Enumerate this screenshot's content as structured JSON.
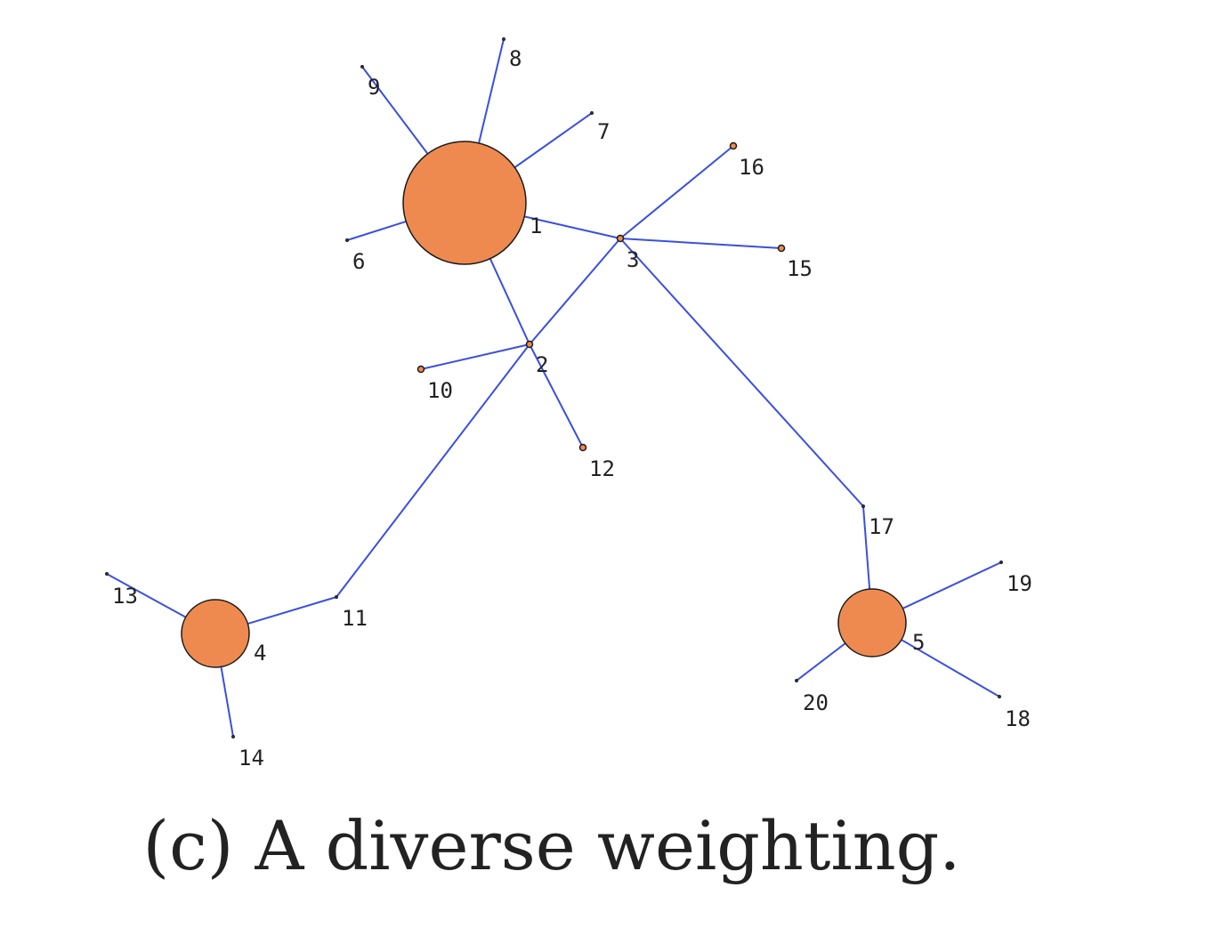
{
  "caption": "(c) A diverse weighting.",
  "colors": {
    "edge": "#3a4fe0",
    "node_fill": "#ee8a50",
    "node_stroke": "#1a1a1a",
    "label": "#222222"
  },
  "nodes": [
    {
      "id": "1",
      "label": "1",
      "size": "large"
    },
    {
      "id": "2",
      "label": "2",
      "size": "tiny"
    },
    {
      "id": "3",
      "label": "3",
      "size": "tiny"
    },
    {
      "id": "4",
      "label": "4",
      "size": "medium"
    },
    {
      "id": "5",
      "label": "5",
      "size": "medium"
    },
    {
      "id": "6",
      "label": "6",
      "size": "point"
    },
    {
      "id": "7",
      "label": "7",
      "size": "point"
    },
    {
      "id": "8",
      "label": "8",
      "size": "point"
    },
    {
      "id": "9",
      "label": "9",
      "size": "point"
    },
    {
      "id": "10",
      "label": "10",
      "size": "tiny"
    },
    {
      "id": "11",
      "label": "11",
      "size": "point"
    },
    {
      "id": "12",
      "label": "12",
      "size": "tiny"
    },
    {
      "id": "13",
      "label": "13",
      "size": "point"
    },
    {
      "id": "14",
      "label": "14",
      "size": "point"
    },
    {
      "id": "15",
      "label": "15",
      "size": "tiny"
    },
    {
      "id": "16",
      "label": "16",
      "size": "tiny"
    },
    {
      "id": "17",
      "label": "17",
      "size": "point"
    },
    {
      "id": "18",
      "label": "18",
      "size": "point"
    },
    {
      "id": "19",
      "label": "19",
      "size": "point"
    },
    {
      "id": "20",
      "label": "20",
      "size": "point"
    }
  ],
  "edges": [
    [
      "1",
      "9"
    ],
    [
      "1",
      "8"
    ],
    [
      "1",
      "7"
    ],
    [
      "1",
      "6"
    ],
    [
      "1",
      "3"
    ],
    [
      "1",
      "2"
    ],
    [
      "3",
      "16"
    ],
    [
      "3",
      "15"
    ],
    [
      "3",
      "2"
    ],
    [
      "3",
      "17"
    ],
    [
      "2",
      "10"
    ],
    [
      "2",
      "12"
    ],
    [
      "2",
      "11"
    ],
    [
      "11",
      "4"
    ],
    [
      "4",
      "13"
    ],
    [
      "4",
      "14"
    ],
    [
      "17",
      "5"
    ],
    [
      "5",
      "19"
    ],
    [
      "5",
      "18"
    ],
    [
      "5",
      "20"
    ]
  ]
}
